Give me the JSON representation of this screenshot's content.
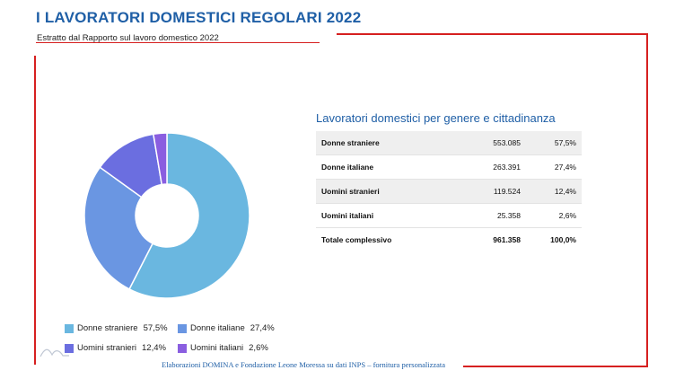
{
  "header": {
    "title": "I LAVORATORI DOMESTICI REGOLARI 2022",
    "subtitle": "Estratto dal Rapporto sul lavoro domestico 2022"
  },
  "footer": {
    "source": "Elaborazioni DOMINA e Fondazione Leone Moressa su dati INPS – fornitura personalizzata"
  },
  "chart_data": {
    "type": "pie",
    "title": "Lavoratori domestici per genere e cittadinanza",
    "categories": [
      "Donne straniere",
      "Donne italiane",
      "Uomini stranieri",
      "Uomini italiani"
    ],
    "values": [
      553085,
      263391,
      119524,
      25358
    ],
    "percentages": [
      "57,5%",
      "27,4%",
      "12,4%",
      "2,6%"
    ],
    "colors": [
      "#6ab7e0",
      "#6a96e2",
      "#6b6ee0",
      "#8a5ee0"
    ],
    "legend_placement": "bottom"
  },
  "legend": [
    {
      "label": "Donne straniere",
      "pct": "57,5%",
      "color": "#6ab7e0"
    },
    {
      "label": "Donne italiane",
      "pct": "27,4%",
      "color": "#6a96e2"
    },
    {
      "label": "Uomini stranieri",
      "pct": "12,4%",
      "color": "#6b6ee0"
    },
    {
      "label": "Uomini italiani",
      "pct": "2,6%",
      "color": "#8a5ee0"
    }
  ],
  "table": {
    "title": "Lavoratori domestici per genere e cittadinanza",
    "rows": [
      {
        "label": "Donne straniere",
        "value": "553.085",
        "pct": "57,5%"
      },
      {
        "label": "Donne italiane",
        "value": "263.391",
        "pct": "27,4%"
      },
      {
        "label": "Uomini stranieri",
        "value": "119.524",
        "pct": "12,4%"
      },
      {
        "label": "Uomini italiani",
        "value": "25.358",
        "pct": "2,6%"
      }
    ],
    "total": {
      "label": "Totale complessivo",
      "value": "961.358",
      "pct": "100,0%"
    }
  }
}
